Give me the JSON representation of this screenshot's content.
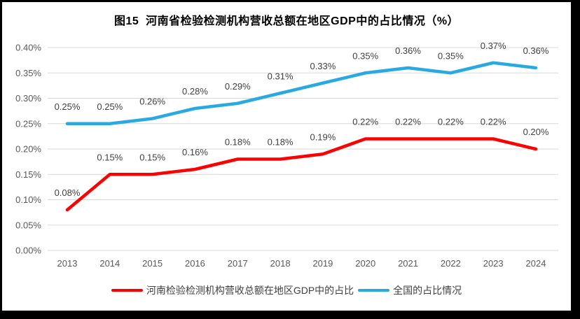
{
  "window": {
    "background": "#ffffff",
    "frame_border_color": "#000000"
  },
  "chart_data": {
    "type": "line",
    "title": "图15  河南省检验检测机构营收总额在地区GDP中的占比情况（%）",
    "categories": [
      "2013",
      "2014",
      "2015",
      "2016",
      "2017",
      "2018",
      "2019",
      "2020",
      "2021",
      "2022",
      "2023",
      "2024"
    ],
    "series": [
      {
        "name": "河南检验检测机构营收总额在地区GDP中的占比",
        "color": "#FF0000",
        "values": [
          0.08,
          0.15,
          0.15,
          0.16,
          0.18,
          0.18,
          0.19,
          0.22,
          0.22,
          0.22,
          0.22,
          0.2
        ],
        "labels": [
          "0.08%",
          "0.15%",
          "0.15%",
          "0.16%",
          "0.18%",
          "0.18%",
          "0.19%",
          "0.22%",
          "0.22%",
          "0.22%",
          "0.22%",
          "0.20%"
        ]
      },
      {
        "name": "全国的占比情况",
        "color": "#29A9E2",
        "values": [
          0.25,
          0.25,
          0.26,
          0.28,
          0.29,
          0.31,
          0.33,
          0.35,
          0.36,
          0.35,
          0.37,
          0.36
        ],
        "labels": [
          "0.25%",
          "0.25%",
          "0.26%",
          "0.28%",
          "0.29%",
          "0.31%",
          "0.33%",
          "0.35%",
          "0.36%",
          "0.35%",
          "0.37%",
          "0.36%"
        ]
      }
    ],
    "xlabel": "",
    "ylabel": "",
    "ylim": [
      0,
      0.4
    ],
    "ytick_step": 0.05,
    "ytick_labels": [
      "0.00%",
      "0.05%",
      "0.10%",
      "0.15%",
      "0.20%",
      "0.25%",
      "0.30%",
      "0.35%",
      "0.40%"
    ],
    "grid": true,
    "gridline_color": "#D9D9D9",
    "axis_text_color": "#595959",
    "data_label_color": "#404040",
    "legend_position": "bottom"
  }
}
